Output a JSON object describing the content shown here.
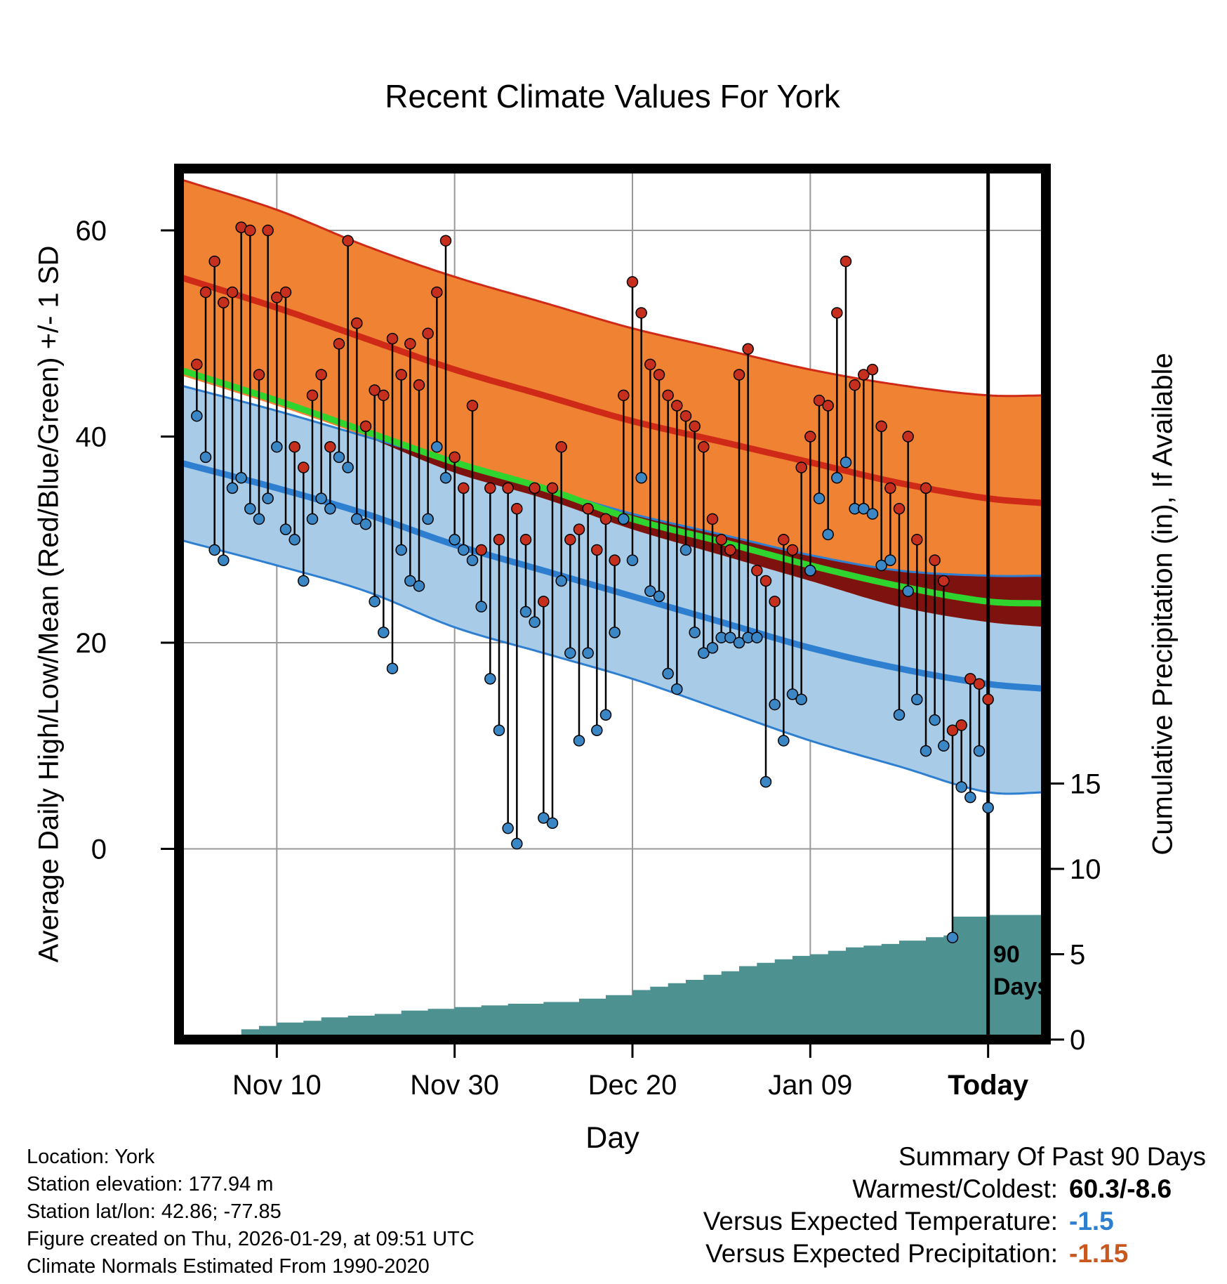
{
  "title": "Recent Climate Values For York",
  "axes": {
    "y_left_label": "Average Daily High/Low/Mean (Red/Blue/Green) +/- 1 SD",
    "y_right_label": "Cumulative Precipitation (in), If Available",
    "x_label": "Day",
    "x_ticks": [
      {
        "day": 10,
        "label": "Nov 10"
      },
      {
        "day": 30,
        "label": "Nov 30"
      },
      {
        "day": 50,
        "label": "Dec 20"
      },
      {
        "day": 70,
        "label": "Jan 09"
      },
      {
        "day": 90,
        "label": "Today",
        "bold": true
      }
    ],
    "y_left_ticks": [
      {
        "value": 0,
        "label": "0"
      },
      {
        "value": 20,
        "label": "20"
      },
      {
        "value": 40,
        "label": "40"
      },
      {
        "value": 60,
        "label": "60"
      }
    ],
    "y_right_ticks": [
      {
        "value": 0,
        "label": "0"
      },
      {
        "value": 5,
        "label": "5"
      },
      {
        "value": 10,
        "label": "10"
      },
      {
        "value": 15,
        "label": "15"
      }
    ]
  },
  "today_marker": {
    "day": 90,
    "line1": "90",
    "line2": "Days"
  },
  "footer": {
    "lines": [
      "Location: York",
      "Station elevation: 177.94 m",
      "Station lat/lon: 42.86; -77.85",
      "Figure created on Thu, 2026-01-29, at 09:51 UTC",
      "Climate Normals Estimated From 1990-2020"
    ]
  },
  "summary": {
    "heading": "Summary Of Past 90 Days",
    "rows": [
      {
        "label": "Warmest/Coldest:",
        "value": "60.3/-8.6",
        "color": "#000000"
      },
      {
        "label": "Versus Expected Temperature:",
        "value": "-1.5",
        "color": "#2e7fd0"
      },
      {
        "label": "Versus Expected Precipitation:",
        "value": "-1.15",
        "color": "#c8581e"
      }
    ]
  },
  "colors": {
    "high_band": "#f08233",
    "high_line": "#cf2a18",
    "overlap_band": "#7e120e",
    "mean_line": "#2fd42f",
    "low_band": "#a8cbe8",
    "low_line": "#2e7fd0",
    "precip_fill": "#4e9191",
    "high_dot": "#c62e1e",
    "low_dot": "#3b86c4",
    "today_line": "#000000",
    "grid": "#999999"
  },
  "chart_data": {
    "type": "line",
    "title": "Recent Climate Values For York",
    "xlabel": "Day",
    "ylabel_left": "Average Daily High/Low/Mean (Red/Blue/Green) +/- 1 SD",
    "ylabel_right": "Cumulative Precipitation (in), If Available",
    "x_unit": "days since Oct 31 (day 90 = Today, Jan 29)",
    "today_day": 90,
    "temp_axis_ticks": [
      0,
      20,
      40,
      60
    ],
    "precip_axis_ticks": [
      0,
      5,
      10,
      15
    ],
    "normals": {
      "days": [
        -1,
        10,
        20,
        30,
        40,
        50,
        60,
        70,
        80,
        90,
        97
      ],
      "high_upper": [
        65,
        62,
        58.5,
        55.5,
        53,
        50.5,
        48.5,
        46.5,
        45,
        44,
        44
      ],
      "high_mean": [
        55.5,
        52.5,
        49.5,
        46.5,
        44,
        41.5,
        39.5,
        37.5,
        35.5,
        34,
        33.5
      ],
      "high_lower": [
        46,
        43,
        40,
        36.5,
        34,
        31,
        28.5,
        26,
        23.5,
        22,
        21.5
      ],
      "mean": [
        46.5,
        43.5,
        40.5,
        37.5,
        35,
        32,
        29.8,
        27.5,
        25.5,
        24,
        23.8
      ],
      "low_upper": [
        45,
        42.5,
        40,
        37.5,
        35,
        32.5,
        30.5,
        28.5,
        27,
        26.5,
        26.5
      ],
      "low_mean": [
        37.5,
        35,
        32.5,
        29.5,
        27,
        24.5,
        22,
        19.5,
        17.5,
        16,
        15.5
      ],
      "low_lower": [
        30,
        27.5,
        25,
        21.5,
        19,
        16.5,
        13.5,
        10.5,
        8,
        5.5,
        5.5
      ]
    },
    "daily": {
      "start_day": 1,
      "high": [
        47,
        54,
        57,
        53,
        54,
        60.3,
        60,
        46,
        60,
        53.5,
        54,
        39,
        37,
        44,
        46,
        39,
        49,
        59,
        51,
        41,
        44.5,
        44,
        49.5,
        46,
        49,
        45,
        50,
        54,
        59,
        38,
        35,
        43,
        29,
        35,
        30,
        35,
        33,
        30,
        35,
        24,
        35,
        39,
        30,
        31,
        33,
        29,
        32,
        28,
        44,
        55,
        52,
        47,
        46,
        44,
        43,
        42,
        41,
        39,
        32,
        30,
        29,
        46,
        48.5,
        27,
        26,
        24,
        30,
        29,
        37,
        40,
        43.5,
        43,
        52,
        57,
        45,
        46,
        46.5,
        41,
        35,
        33,
        40,
        30,
        35,
        28,
        26,
        11.5,
        12,
        16.5,
        16,
        14.5
      ],
      "low": [
        42,
        38,
        29,
        28,
        35,
        36,
        33,
        32,
        34,
        39,
        31,
        30,
        26,
        32,
        34,
        33,
        38,
        37,
        32,
        31.5,
        24,
        21,
        17.5,
        29,
        26,
        25.5,
        32,
        39,
        36,
        30,
        29,
        28,
        23.5,
        16.5,
        11.5,
        2,
        0.5,
        23,
        22,
        3,
        2.5,
        26,
        19,
        10.5,
        19,
        11.5,
        13,
        21,
        32,
        28,
        36,
        25,
        24.5,
        17,
        15.5,
        29,
        21,
        19,
        19.5,
        20.5,
        20.5,
        20,
        20.5,
        20.5,
        6.5,
        14,
        10.5,
        15,
        14.5,
        27,
        34,
        30.5,
        36,
        37.5,
        33,
        33,
        32.5,
        27.5,
        28,
        13,
        25,
        14.5,
        9.5,
        12.5,
        10,
        -8.6,
        6,
        5,
        9.5,
        4
      ]
    },
    "cumulative_precip": {
      "days": [
        6,
        8,
        10,
        13,
        15,
        18,
        21,
        24,
        27,
        30,
        33,
        36,
        40,
        44,
        47,
        50,
        52,
        54,
        56,
        58,
        60,
        62,
        64,
        66,
        68,
        70,
        72,
        74,
        76,
        78,
        80,
        83,
        85,
        86,
        90,
        96
      ],
      "values": [
        0.6,
        0.8,
        1.0,
        1.1,
        1.3,
        1.4,
        1.5,
        1.7,
        1.8,
        1.9,
        2.0,
        2.1,
        2.2,
        2.4,
        2.6,
        2.9,
        3.1,
        3.3,
        3.5,
        3.8,
        4.0,
        4.3,
        4.5,
        4.7,
        4.9,
        5.0,
        5.2,
        5.4,
        5.5,
        5.6,
        5.8,
        6.0,
        6.1,
        7.2,
        7.3,
        7.3
      ]
    },
    "summary_stats": {
      "warmest": 60.3,
      "coldest": -8.6,
      "versus_expected_temperature": -1.5,
      "versus_expected_precipitation": -1.15
    }
  }
}
